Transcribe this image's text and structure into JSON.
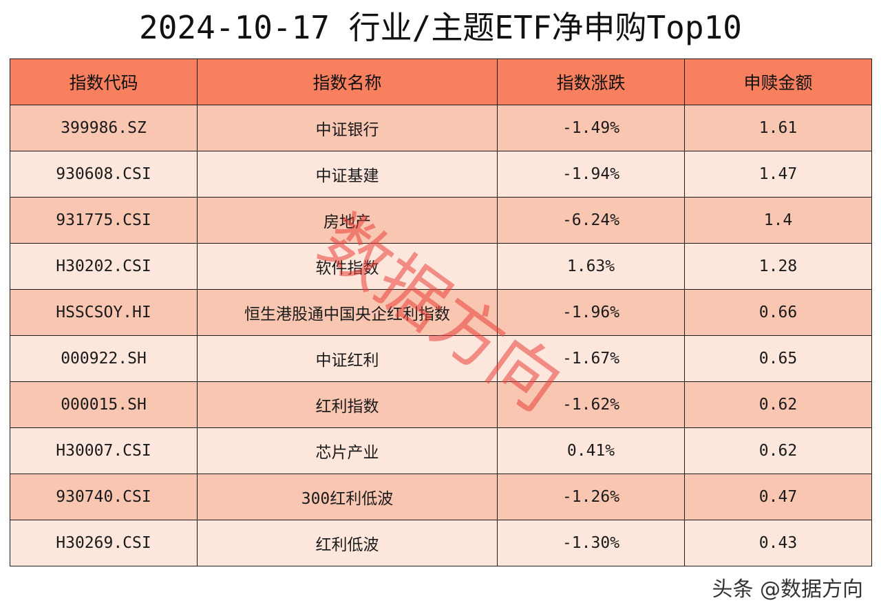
{
  "chart_data": {
    "type": "table",
    "title": "2024-10-17 行业/主题ETF净申购Top10",
    "columns": [
      "指数代码",
      "指数名称",
      "指数涨跌",
      "申赎金额"
    ],
    "rows": [
      [
        "399986.SZ",
        "中证银行",
        "-1.49%",
        "1.61"
      ],
      [
        "930608.CSI",
        "中证基建",
        "-1.94%",
        "1.47"
      ],
      [
        "931775.CSI",
        "房地产",
        "-6.24%",
        "1.4"
      ],
      [
        "H30202.CSI",
        "软件指数",
        "1.63%",
        "1.28"
      ],
      [
        "HSSCSOY.HI",
        "恒生港股通中国央企红利指数",
        "-1.96%",
        "0.66"
      ],
      [
        "000922.SH",
        "中证红利",
        "-1.67%",
        "0.65"
      ],
      [
        "000015.SH",
        "红利指数",
        "-1.62%",
        "0.62"
      ],
      [
        "H30007.CSI",
        "芯片产业",
        "0.41%",
        "0.62"
      ],
      [
        "930740.CSI",
        "300红利低波",
        "-1.26%",
        "0.47"
      ],
      [
        "H30269.CSI",
        "红利低波",
        "-1.30%",
        "0.43"
      ]
    ]
  },
  "watermark": "数据方向",
  "footer": {
    "attribution": "头条 @数据方向"
  },
  "colors": {
    "header_bg": "#F8805F",
    "row_odd_bg": "#F8C6B1",
    "row_even_bg": "#FDE7DD",
    "border": "#1a1a1a",
    "watermark": "#E8403A"
  }
}
